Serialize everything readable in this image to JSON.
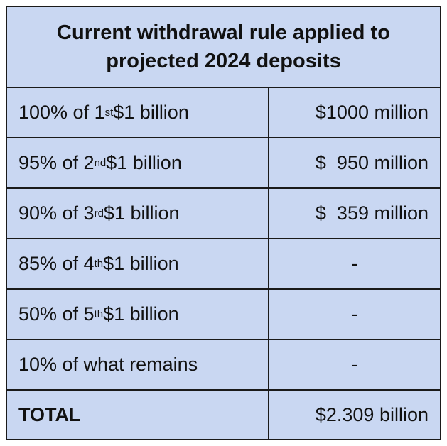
{
  "title": "Current withdrawal rule applied to projected 2024 deposits",
  "rows": [
    {
      "pct": "100% of 1",
      "sup": "st",
      "rest": " $1 billion",
      "amount": "$1000 million"
    },
    {
      "pct": "95% of 2",
      "sup": "nd",
      "rest": " $1 billion",
      "amount": "$  950 million"
    },
    {
      "pct": "90% of 3",
      "sup": "rd",
      "rest": " $1 billion",
      "amount": "$  359 million"
    },
    {
      "pct": "85% of 4",
      "sup": "th",
      "rest": " $1 billion",
      "amount": "-"
    },
    {
      "pct": "50% of 5",
      "sup": "th",
      "rest": " $1 billion",
      "amount": "-"
    },
    {
      "pct": "10% of what remains",
      "sup": "",
      "rest": "",
      "amount": "-"
    }
  ],
  "total": {
    "label": "TOTAL",
    "amount": "$2.309 billion"
  }
}
